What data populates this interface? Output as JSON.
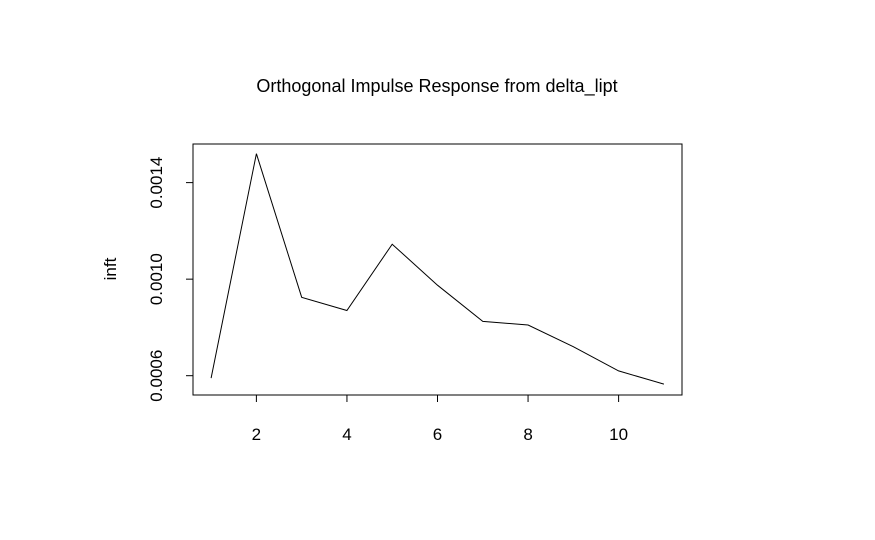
{
  "chart_data": {
    "type": "line",
    "title": "Orthogonal Impulse Response from delta_lipt",
    "xlabel": "",
    "ylabel": "inft",
    "x": [
      1,
      2,
      3,
      4,
      5,
      6,
      7,
      8,
      9,
      10,
      11
    ],
    "series": [
      {
        "values": [
          0.00059,
          0.00152,
          0.000925,
          0.00087,
          0.001145,
          0.000975,
          0.000825,
          0.00081,
          0.00072,
          0.00062,
          0.000565
        ]
      }
    ],
    "xlim": [
      0.6,
      11.4
    ],
    "ylim": [
      0.00052,
      0.00156
    ],
    "xticks": [
      2,
      4,
      6,
      8,
      10
    ],
    "yticks": [
      0.0006,
      0.001,
      0.0014
    ],
    "xtick_labels": [
      "2",
      "4",
      "6",
      "8",
      "10"
    ],
    "ytick_labels": [
      "0.0006",
      "0.0010",
      "0.0014"
    ],
    "grid": false,
    "line_color": "#000000"
  }
}
